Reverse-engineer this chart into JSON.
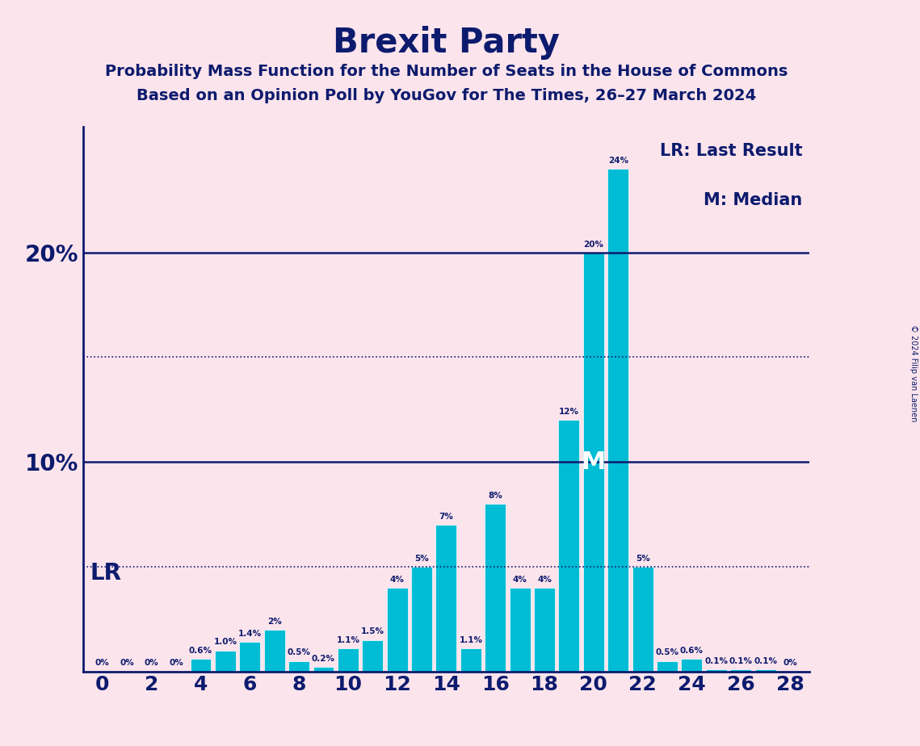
{
  "title": "Brexit Party",
  "subtitle1": "Probability Mass Function for the Number of Seats in the House of Commons",
  "subtitle2": "Based on an Opinion Poll by YouGov for The Times, 26–27 March 2024",
  "copyright": "© 2024 Filip van Laenen",
  "legend_lr": "LR: Last Result",
  "legend_m": "M: Median",
  "background_color": "#fce4ec",
  "bar_color": "#00bcd4",
  "title_color": "#0d1b6e",
  "seats": [
    0,
    1,
    2,
    3,
    4,
    5,
    6,
    7,
    8,
    9,
    10,
    11,
    12,
    13,
    14,
    15,
    16,
    17,
    18,
    19,
    20,
    21,
    22,
    23,
    24,
    25,
    26,
    27,
    28
  ],
  "values": [
    0.0,
    0.0,
    0.0,
    0.0,
    0.6,
    1.0,
    1.4,
    2.0,
    0.5,
    0.2,
    1.1,
    1.5,
    4.0,
    5.0,
    7.0,
    1.1,
    8.0,
    4.0,
    4.0,
    12.0,
    20.0,
    24.0,
    5.0,
    0.5,
    0.6,
    0.1,
    0.1,
    0.1,
    0.0
  ],
  "bar_labels": [
    "0%",
    "0%",
    "0%",
    "0%",
    "0.6%",
    "1.0%",
    "1.4%",
    "2%",
    "0.5%",
    "0.2%",
    "1.1%",
    "1.5%",
    "4%",
    "5%",
    "7%",
    "1.1%",
    "8%",
    "4%",
    "4%",
    "12%",
    "20%",
    "24%",
    "5%",
    "0.5%",
    "0.6%",
    "0.1%",
    "0.1%",
    "0.1%",
    "0%"
  ],
  "show_zero_labels": [
    0,
    1,
    2,
    3,
    28
  ],
  "xtick_positions": [
    0,
    2,
    4,
    6,
    8,
    10,
    12,
    14,
    16,
    18,
    20,
    22,
    24,
    26,
    28
  ],
  "xtick_labels": [
    "0",
    "2",
    "4",
    "6",
    "8",
    "10",
    "12",
    "14",
    "16",
    "18",
    "20",
    "22",
    "24",
    "26",
    "28"
  ],
  "ylim": [
    0,
    26
  ],
  "solid_hlines": [
    10.0,
    20.0
  ],
  "dotted_hlines": [
    5.0,
    15.0
  ],
  "median_seat": 20,
  "median_label": "M",
  "lr_label": "LR",
  "label_fontsize": 7.5,
  "title_fontsize": 30,
  "subtitle1_fontsize": 14,
  "subtitle2_fontsize": 14,
  "ytick_fontsize": 20,
  "xtick_fontsize": 18,
  "lr_fontsize": 20,
  "median_fontsize": 22,
  "legend_fontsize": 15
}
